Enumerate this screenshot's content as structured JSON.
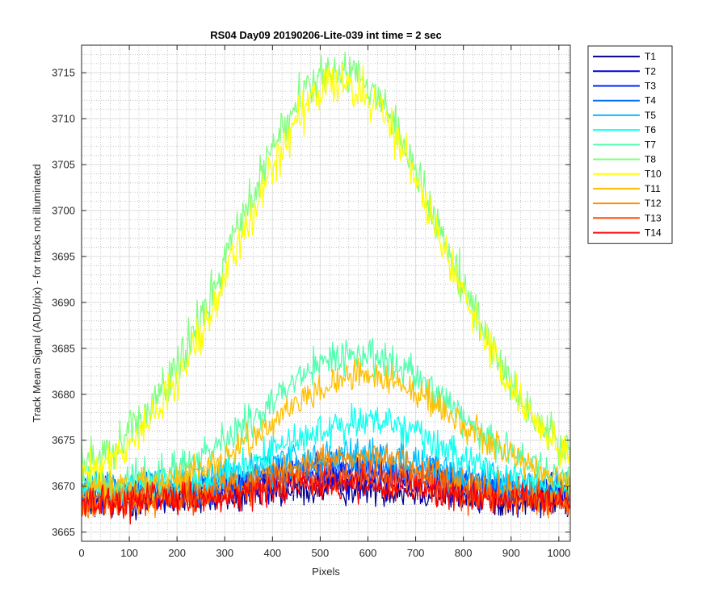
{
  "chart_data": {
    "type": "line",
    "title": "RS04 Day09 20190206-Lite-039 int time = 2 sec",
    "xlabel": "Pixels",
    "ylabel": "Track Mean Signal (ADU/pix) - for tracks not illuminated",
    "xlim": [
      0,
      1024
    ],
    "ylim": [
      3664,
      3718
    ],
    "xticks": [
      0,
      100,
      200,
      300,
      400,
      500,
      600,
      700,
      800,
      900,
      1000
    ],
    "yticks": [
      3665,
      3670,
      3675,
      3680,
      3685,
      3690,
      3695,
      3700,
      3705,
      3710,
      3715
    ],
    "grid": true,
    "minor_grid": true,
    "legend_position": "outside-top-right",
    "series": [
      {
        "name": "T1",
        "color": "#00008F",
        "base": 3668.3,
        "peak": 1.5,
        "center": 560,
        "width": 240,
        "noise": 1.8
      },
      {
        "name": "T2",
        "color": "#0000DF",
        "base": 3668.8,
        "peak": 2.0,
        "center": 560,
        "width": 240,
        "noise": 1.8
      },
      {
        "name": "T3",
        "color": "#0020FF",
        "base": 3669.2,
        "peak": 2.5,
        "center": 560,
        "width": 240,
        "noise": 1.8
      },
      {
        "name": "T4",
        "color": "#0070FF",
        "base": 3669.5,
        "peak": 3.0,
        "center": 560,
        "width": 240,
        "noise": 1.8
      },
      {
        "name": "T5",
        "color": "#00BFFF",
        "base": 3670.0,
        "peak": 3.5,
        "center": 560,
        "width": 240,
        "noise": 1.8
      },
      {
        "name": "T6",
        "color": "#10FFEF",
        "base": 3669.5,
        "peak": 7.5,
        "center": 590,
        "width": 250,
        "noise": 1.8
      },
      {
        "name": "T7",
        "color": "#50FFAF",
        "base": 3670.0,
        "peak": 14.5,
        "center": 580,
        "width": 270,
        "noise": 2.0
      },
      {
        "name": "T8",
        "color": "#80FF80",
        "base": 3670.5,
        "peak": 45.0,
        "center": 540,
        "width": 300,
        "noise": 2.4
      },
      {
        "name": "T10",
        "color": "#FFFF00",
        "base": 3669.8,
        "peak": 44.0,
        "center": 545,
        "width": 300,
        "noise": 2.2
      },
      {
        "name": "T11",
        "color": "#FFBF00",
        "base": 3669.5,
        "peak": 12.5,
        "center": 600,
        "width": 270,
        "noise": 1.8
      },
      {
        "name": "T12",
        "color": "#FF8F00",
        "base": 3668.5,
        "peak": 4.5,
        "center": 560,
        "width": 250,
        "noise": 1.8
      },
      {
        "name": "T13",
        "color": "#FF5000",
        "base": 3668.3,
        "peak": 3.0,
        "center": 560,
        "width": 240,
        "noise": 1.8
      },
      {
        "name": "T14",
        "color": "#FF0000",
        "base": 3668.2,
        "peak": 2.0,
        "center": 560,
        "width": 240,
        "noise": 1.8
      }
    ]
  }
}
